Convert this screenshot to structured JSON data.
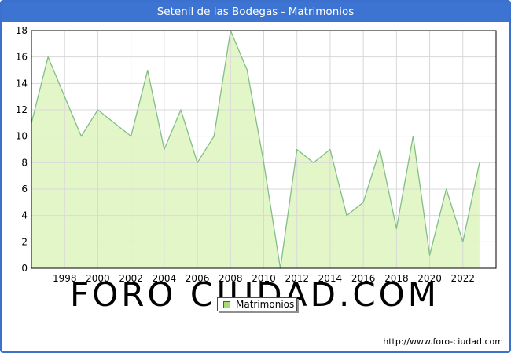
{
  "window": {
    "title": "Setenil de las Bodegas - Matrimonios"
  },
  "chart_data": {
    "type": "area",
    "title": "Setenil de las Bodegas - Matrimonios",
    "series_name": "Matrimonios",
    "x": [
      1996,
      1997,
      1998,
      1999,
      2000,
      2001,
      2002,
      2003,
      2004,
      2005,
      2006,
      2007,
      2008,
      2009,
      2010,
      2011,
      2012,
      2013,
      2014,
      2015,
      2016,
      2017,
      2018,
      2019,
      2020,
      2021,
      2022,
      2023
    ],
    "values": [
      11,
      16,
      13,
      10,
      12,
      11,
      10,
      15,
      9,
      12,
      8,
      10,
      18,
      15,
      8,
      0,
      9,
      8,
      9,
      4,
      5,
      9,
      3,
      10,
      1,
      6,
      2,
      8
    ],
    "xlim": [
      1996,
      2024
    ],
    "ylim": [
      0,
      18
    ],
    "y_ticks": [
      0,
      2,
      4,
      6,
      8,
      10,
      12,
      14,
      16,
      18
    ],
    "x_tick_years": [
      1998,
      2000,
      2002,
      2004,
      2006,
      2008,
      2010,
      2012,
      2014,
      2016,
      2018,
      2020,
      2022
    ],
    "grid": true,
    "legend_position": "bottom-center",
    "colors": {
      "title_bar": "#3d74d1",
      "frame_border": "#3b70cf",
      "area_fill": "#e3f6c8",
      "line": "#82be88",
      "grid": "#d8d8d8",
      "plot_border": "#000000",
      "watermark": "#e3e7f0",
      "legend_swatch": "#a6dd70"
    }
  },
  "legend": {
    "label": "Matrimonios"
  },
  "watermark": "FORO CIUDAD.COM",
  "footer": {
    "url": "http://www.foro-ciudad.com"
  }
}
